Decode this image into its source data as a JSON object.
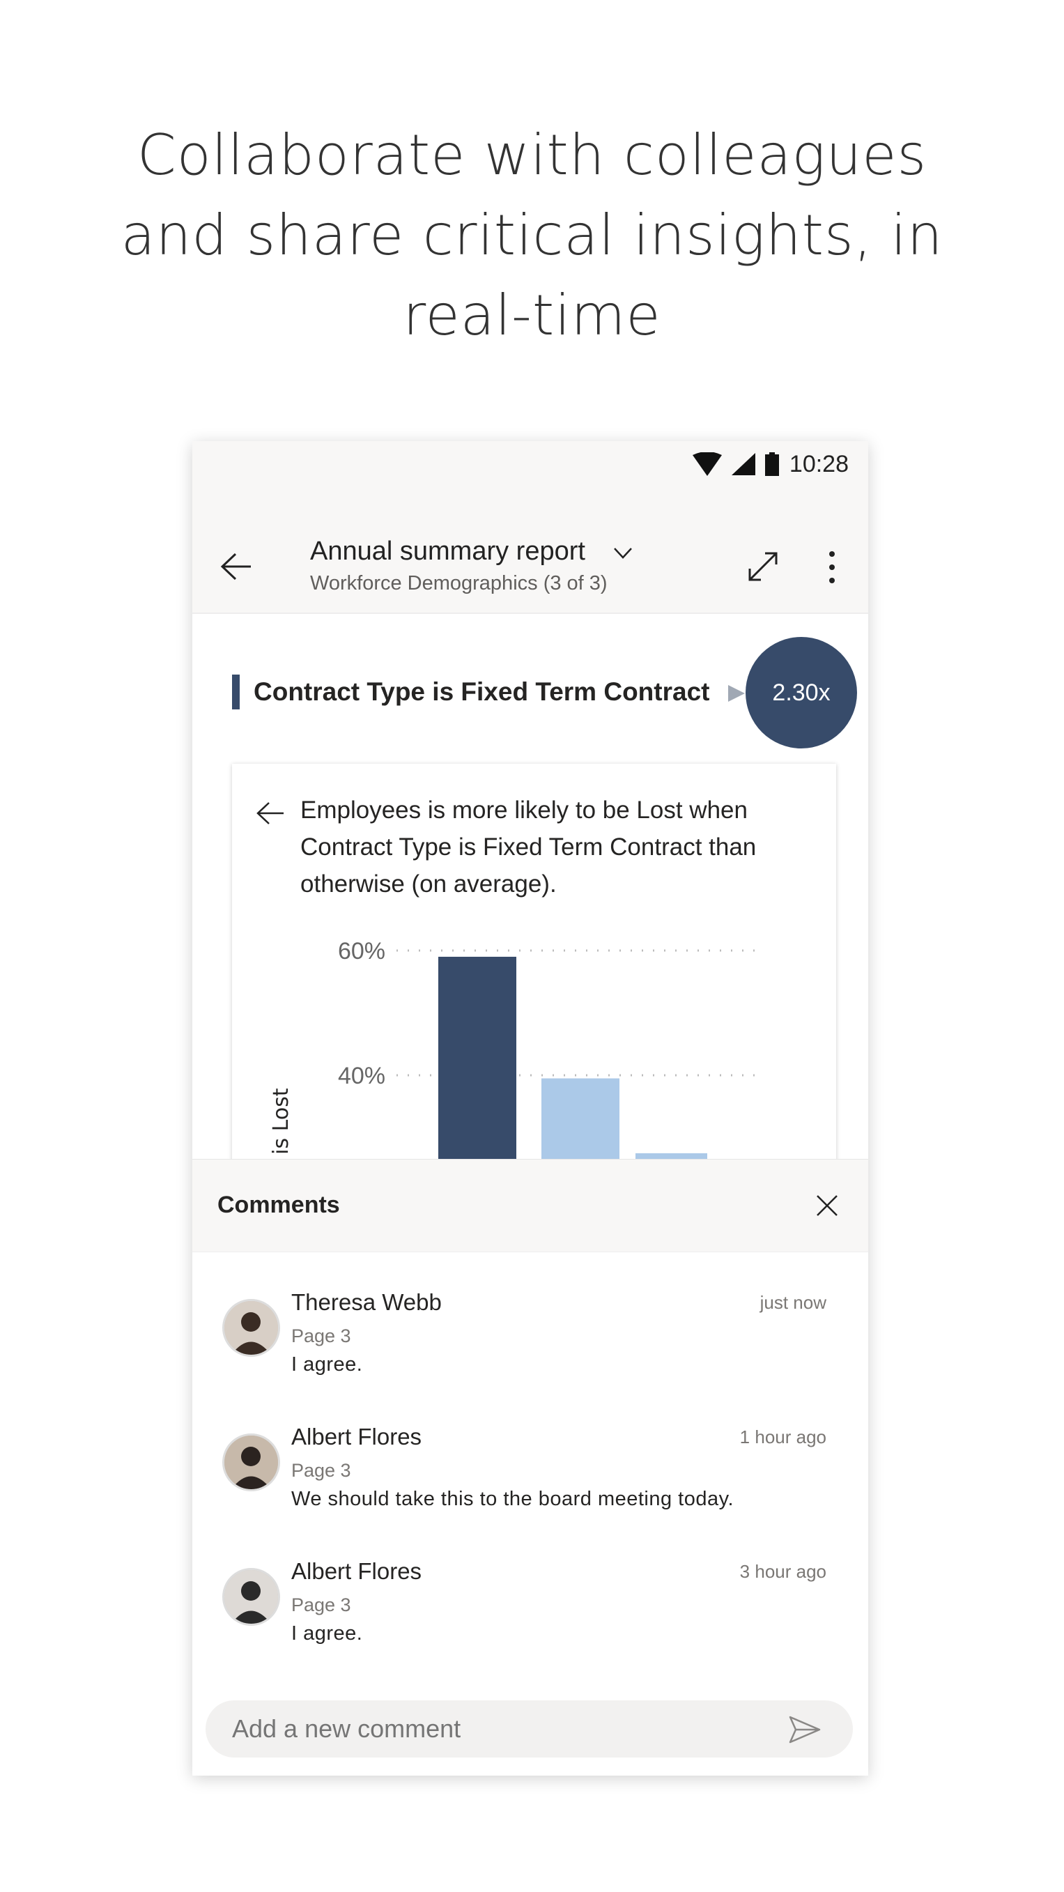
{
  "headline": "Collaborate with colleagues and share critical insights, in real-time",
  "status_bar": {
    "time": "10:28",
    "icons": [
      "wifi-icon",
      "signal-icon",
      "battery-icon"
    ]
  },
  "app_bar": {
    "title": "Annual summary report",
    "subtitle": "Workforce Demographics (3 of 3)",
    "icons": [
      "back-arrow-icon",
      "chevron-down-icon",
      "expand-icon",
      "more-vertical-icon"
    ]
  },
  "insight": {
    "title": "Contract Type is Fixed Term Contract",
    "badge": "2.30x",
    "description": "Employees is more likely to be Lost when Contract Type is Fixed Term Contract than otherwise (on average)."
  },
  "chart_data": {
    "type": "bar",
    "ylabel": "Employees is Lost",
    "yticks": [
      "40%",
      "60%"
    ],
    "ylim": [
      20,
      65
    ],
    "grid": true,
    "values": [
      59,
      39.5,
      27.5
    ],
    "colors": [
      "#374b6a",
      "#abc9e8",
      "#abc9e8"
    ]
  },
  "comments": {
    "title": "Comments",
    "items": [
      {
        "name": "Theresa Webb",
        "page": "Page 3",
        "text": "I agree.",
        "time": "just now"
      },
      {
        "name": "Albert Flores",
        "page": "Page 3",
        "text": "We should take this to the board meeting today.",
        "time": "1 hour ago"
      },
      {
        "name": "Albert Flores",
        "page": "Page 3",
        "text": "I agree.",
        "time": "3 hour ago"
      }
    ],
    "input_placeholder": "Add a new comment"
  }
}
